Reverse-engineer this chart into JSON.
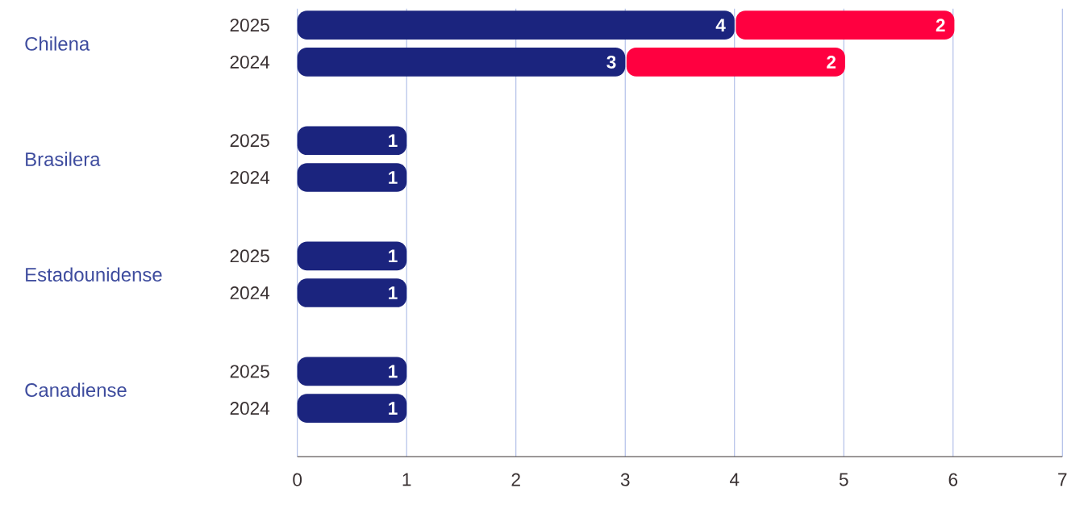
{
  "chart_data": {
    "type": "bar",
    "orientation": "horizontal",
    "stacked": true,
    "data_labels": true,
    "grid": "x",
    "categories": [
      "2025",
      "2024",
      "2025",
      "2024",
      "2025",
      "2024",
      "2025",
      "2024"
    ],
    "annotations": [
      "Chilena",
      "Brasilera",
      "Estadounidense",
      "Canadiense"
    ],
    "series": [
      {
        "color": "#1b247e",
        "values": [
          4,
          3,
          1,
          1,
          1,
          1,
          1,
          1
        ]
      },
      {
        "color": "#ff0040",
        "values": [
          2,
          2,
          null,
          null,
          null,
          null,
          null,
          null
        ]
      }
    ],
    "xlim": [
      0,
      7
    ],
    "xticks": [
      0,
      1,
      2,
      3,
      4,
      5,
      6,
      7
    ]
  }
}
